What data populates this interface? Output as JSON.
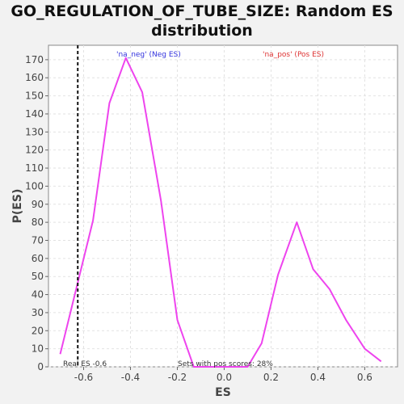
{
  "chart_data": {
    "type": "line",
    "title_line1": "GO_REGULATION_OF_TUBE_SIZE: Random ES",
    "title_line2": "distribution",
    "xlabel": "ES",
    "ylabel": "P(ES)",
    "xlim": [
      -0.75,
      0.74
    ],
    "ylim": [
      0,
      178
    ],
    "x_ticks": [
      -0.6,
      -0.4,
      -0.2,
      0.0,
      0.2,
      0.4,
      0.6
    ],
    "x_tick_labels": [
      "-0.6",
      "-0.4",
      "-0.2",
      "0.0",
      "0.2",
      "0.4",
      "0.6"
    ],
    "y_ticks": [
      0,
      10,
      20,
      30,
      40,
      50,
      60,
      70,
      80,
      90,
      100,
      110,
      120,
      130,
      140,
      150,
      160,
      170
    ],
    "grid": true,
    "series": [
      {
        "color": "#ee44ee",
        "x": [
          -0.7,
          -0.56,
          -0.49,
          -0.42,
          -0.35,
          -0.27,
          -0.2,
          -0.13,
          -0.06,
          0.02,
          0.1,
          0.16,
          0.23,
          0.31,
          0.38,
          0.45,
          0.52,
          0.6,
          0.67
        ],
        "y": [
          7,
          81,
          146,
          171,
          152,
          92,
          26,
          0,
          0,
          0,
          0,
          13,
          51,
          80,
          54,
          43,
          26,
          10,
          3
        ]
      }
    ],
    "legend": [
      {
        "label": "'na_neg' (Neg ES)",
        "color": "#3333dd",
        "position": "top-left"
      },
      {
        "label": "'na_pos' (Pos ES)",
        "color": "#dd3333",
        "position": "top-right"
      }
    ],
    "real_es": {
      "value": -0.625,
      "label": "Real ES -0.6"
    },
    "pos_scores_label": "Sets with pos scores: 28%"
  }
}
